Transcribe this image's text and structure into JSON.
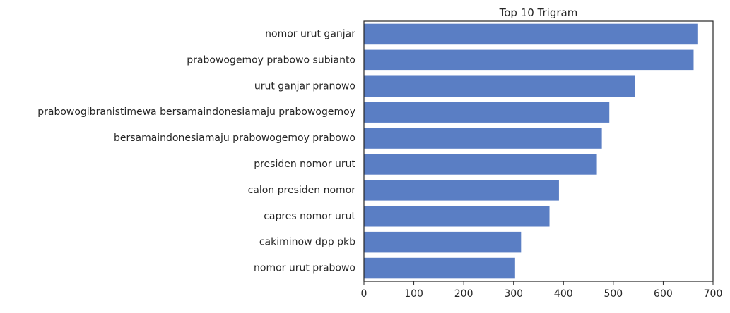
{
  "chart_data": {
    "type": "bar",
    "orientation": "horizontal",
    "title": "Top 10 Trigram",
    "xlabel": "",
    "ylabel": "",
    "categories": [
      "nomor urut ganjar",
      "prabowogemoy prabowo subianto",
      "urut ganjar pranowo",
      "prabowogibranistimewa bersamaindonesiamaju prabowogemoy",
      "bersamaindonesiamaju prabowogemoy prabowo",
      "presiden nomor urut",
      "calon presiden nomor",
      "capres nomor urut",
      "cakiminow dpp pkb",
      "nomor urut prabowo"
    ],
    "values": [
      670,
      661,
      544,
      492,
      477,
      467,
      391,
      372,
      315,
      303
    ],
    "xlim": [
      0,
      700
    ],
    "xticks": [
      0,
      100,
      200,
      300,
      400,
      500,
      600,
      700
    ],
    "grid": false,
    "bar_color": "#5a7ec4"
  }
}
